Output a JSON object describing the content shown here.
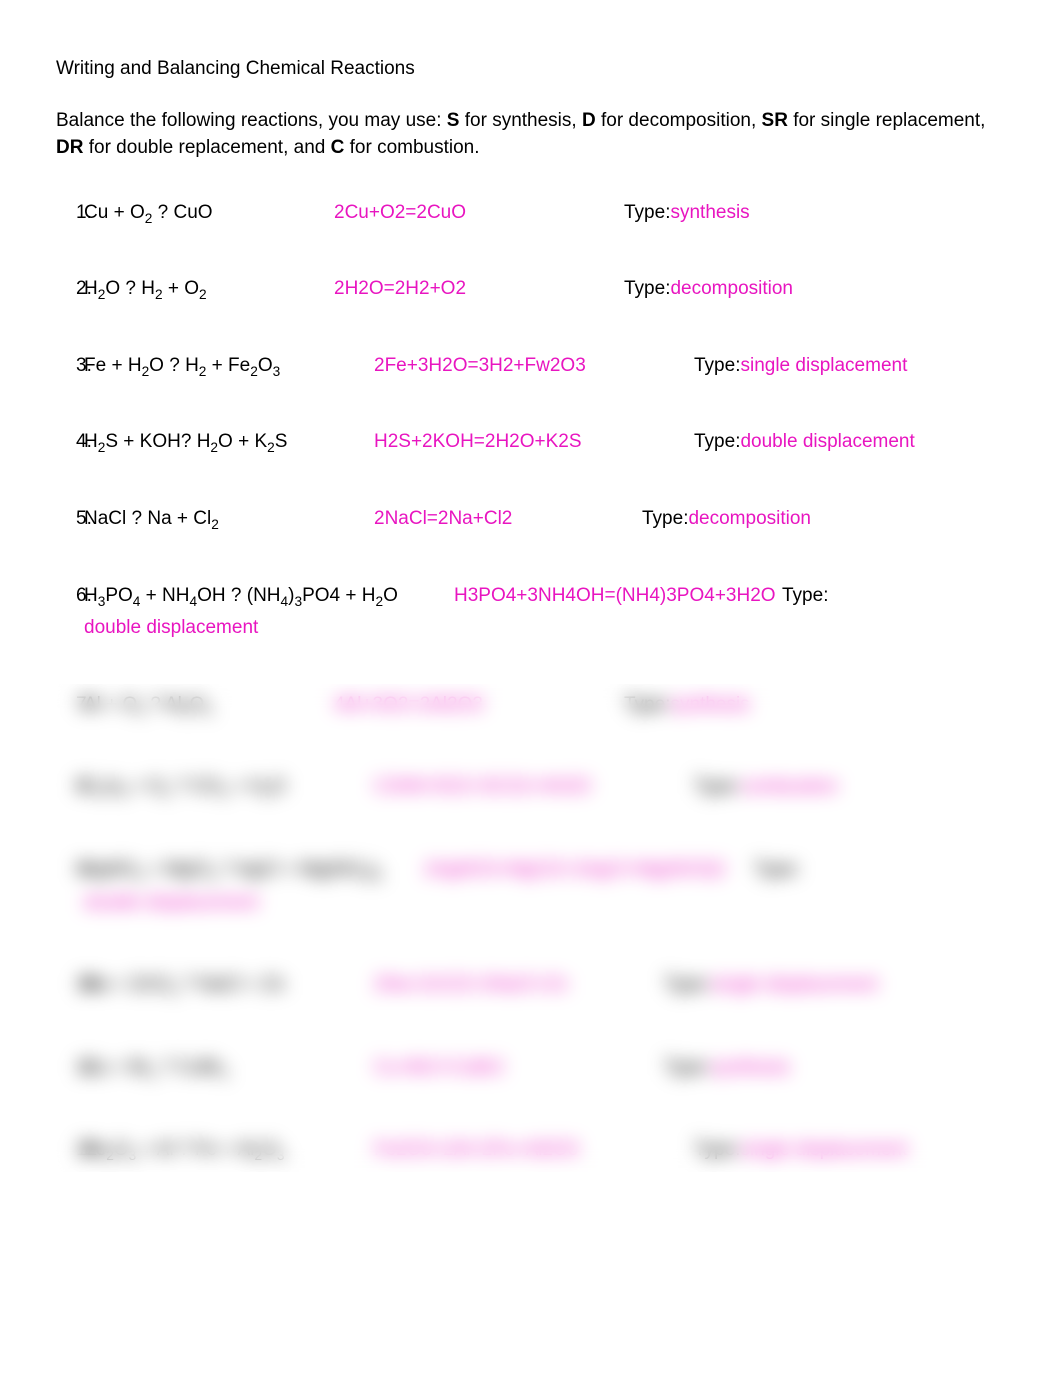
{
  "title": "Writing and Balancing Chemical Reactions",
  "instructions": {
    "pre": "Balance the following reactions, you may use: ",
    "s": "S",
    "s_txt": " for synthesis, ",
    "d": "D",
    "d_txt": " for decomposition, ",
    "sr": "SR",
    "sr_txt": " for single replacement, ",
    "dr": "DR",
    "dr_txt": " for double replacement, and ",
    "c": "C",
    "c_txt": " for combustion."
  },
  "type_label": "Type:",
  "colors": {
    "answer": "#e815c0",
    "text": "#000000",
    "background": "#ffffff"
  },
  "rows": [
    {
      "num": "1.",
      "eq_parts": [
        "Cu  + O",
        "2",
        " ? CuO"
      ],
      "ans": "2Cu+O2=2CuO",
      "type": "synthesis",
      "eq_w": 250,
      "ans_w": 290
    },
    {
      "num": "2.",
      "eq_parts": [
        "H",
        "2",
        "O ? H",
        "2",
        " + O",
        "2"
      ],
      "ans": "2H2O=2H2+O2",
      "type": "decomposition",
      "eq_w": 250,
      "ans_w": 290
    },
    {
      "num": "3.",
      "eq_parts": [
        "Fe + H",
        "2",
        "O ? H",
        "2",
        " + Fe",
        "2",
        "O",
        "3"
      ],
      "ans": "2Fe+3H2O=3H2+Fw2O3",
      "type": "single displacement",
      "eq_w": 290,
      "ans_w": 320
    },
    {
      "num": "4.",
      "eq_parts": [
        "H",
        "2",
        "S + KOH?  H",
        "2",
        "O + K",
        "2",
        "S"
      ],
      "ans": "H2S+2KOH=2H2O+K2S",
      "type": "double displacement",
      "eq_w": 290,
      "ans_w": 320
    },
    {
      "num": "5.",
      "eq_parts": [
        "NaCl ?  Na + Cl",
        "2"
      ],
      "ans": "2NaCl=2Na+Cl2",
      "type": "decomposition",
      "eq_w": 290,
      "ans_w": 268
    },
    {
      "num": "6.",
      "eq_parts": [
        "H",
        "3",
        "PO",
        "4",
        " + NH",
        "4",
        "OH ?  (NH",
        "4",
        ")",
        "3",
        "PO4 + H",
        "2",
        "O"
      ],
      "ans": "H3PO4+3NH4OH=(NH4)3PO4+3H2O",
      "type": "double displacement",
      "eq_w": 370,
      "ans_w": 328,
      "wrap": true
    }
  ],
  "blurred": [
    {
      "num": "7.",
      "eq_parts": [
        "Al + O",
        "2",
        " ? Al",
        "2",
        "O",
        "3"
      ],
      "ans": "4Al+3O2=2Al2O3",
      "type": "synthesis",
      "eq_w": 250,
      "ans_w": 290
    },
    {
      "num": "8.",
      "eq_parts": [
        "C",
        "3",
        "H",
        "8",
        " + O",
        "2",
        " ? CO",
        "2",
        " + H",
        "2",
        "O"
      ],
      "ans": "C3H8+5O2=3CO2+4H2O",
      "type": "combustion",
      "eq_w": 290,
      "ans_w": 320
    },
    {
      "num": "9.",
      "eq_parts": [
        "AgNO",
        "3",
        " + MgCl",
        "2",
        " ? AgCl + Mg(NO",
        "3",
        ")",
        "2"
      ],
      "ans": "2AgNO3+MgCl2=2AgCl+Mg(NO3)2",
      "type": "double displacement",
      "eq_w": 340,
      "ans_w": 330,
      "wrap": true
    },
    {
      "num": "10.",
      "eq_parts": [
        "Na + ZnCl",
        "2",
        " ? NaCl + Zn"
      ],
      "ans": "2Na+ZnCl2=2NaCl+Zn",
      "type": "single displacement",
      "eq_w": 290,
      "ans_w": 290
    },
    {
      "num": "11.",
      "eq_parts": [
        "Cu + Br",
        "2",
        " ? CuBr",
        "2"
      ],
      "ans": "Cu+Br2=CuBr2",
      "type": "synthesis",
      "eq_w": 290,
      "ans_w": 290
    },
    {
      "num": "12.",
      "eq_parts": [
        "Fe",
        "2",
        "O",
        "3",
        " + Al ? Fe + Al",
        "2",
        "O",
        "3"
      ],
      "ans": "Fe2O3+2Al=2Fe+Al2O3",
      "type": "single displacement",
      "eq_w": 290,
      "ans_w": 320
    }
  ]
}
